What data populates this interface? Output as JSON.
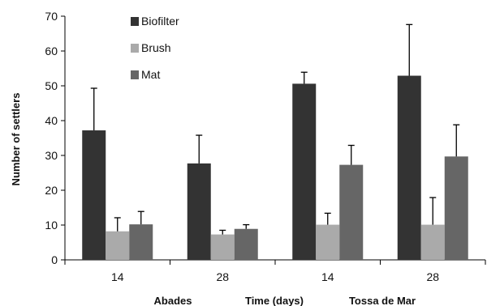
{
  "chart_data": {
    "type": "bar",
    "title": "",
    "xlabel": "Time (days)",
    "ylabel": "Number of settlers",
    "ylim": [
      0,
      70
    ],
    "yticks": [
      0,
      10,
      20,
      30,
      40,
      50,
      60,
      70
    ],
    "categories": [
      "14",
      "28",
      "14",
      "28"
    ],
    "category_groups": [
      {
        "label": "Abades",
        "categories": [
          0,
          1
        ]
      },
      {
        "label": "Tossa de Mar",
        "categories": [
          2,
          3
        ]
      }
    ],
    "series": [
      {
        "name": "Biofilter",
        "color": "#333333",
        "values": [
          37.2,
          27.7,
          50.6,
          52.9
        ],
        "error": [
          12.1,
          8.1,
          3.3,
          14.7
        ]
      },
      {
        "name": "Brush",
        "color": "#aaaaaa",
        "values": [
          8.2,
          7.3,
          10.1,
          10.1
        ],
        "error": [
          3.9,
          1.2,
          3.3,
          7.8
        ]
      },
      {
        "name": "Mat",
        "color": "#666666",
        "values": [
          10.2,
          8.9,
          27.3,
          29.7
        ],
        "error": [
          3.7,
          1.2,
          5.6,
          9.1
        ]
      }
    ],
    "legend": "top-left",
    "grid": false
  }
}
